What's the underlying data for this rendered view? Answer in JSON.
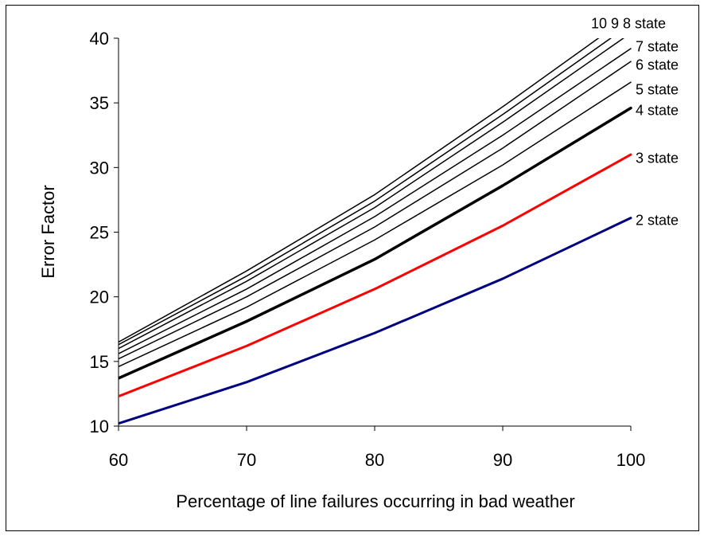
{
  "chart_data": {
    "type": "line",
    "title": "",
    "xlabel": "Percentage of line failures occurring in bad weather",
    "ylabel": "Error Factor",
    "xlim": [
      60,
      100
    ],
    "ylim": [
      10,
      40
    ],
    "xticks": [
      60,
      70,
      80,
      90,
      100
    ],
    "yticks": [
      10,
      15,
      20,
      25,
      30,
      35,
      40
    ],
    "grid": false,
    "legend": "none",
    "x": [
      60,
      70,
      80,
      90,
      100
    ],
    "series": [
      {
        "name": "2 state",
        "label": "2 state",
        "color": "#000080",
        "width": 3,
        "values": [
          10.2,
          13.4,
          17.2,
          21.4,
          26.1
        ]
      },
      {
        "name": "3 state",
        "label": "3 state",
        "color": "#ff0000",
        "width": 3,
        "values": [
          12.3,
          16.2,
          20.6,
          25.5,
          31.0
        ]
      },
      {
        "name": "4 state",
        "label": "4 state",
        "color": "#000000",
        "width": 3.5,
        "values": [
          13.7,
          18.1,
          22.9,
          28.6,
          34.6
        ]
      },
      {
        "name": "5 state",
        "label": "5 state",
        "color": "#000000",
        "width": 1.5,
        "values": [
          14.6,
          19.2,
          24.4,
          30.2,
          36.6
        ]
      },
      {
        "name": "6 state",
        "label": "6 state",
        "color": "#000000",
        "width": 1.5,
        "values": [
          15.2,
          20.0,
          25.4,
          31.5,
          38.2
        ]
      },
      {
        "name": "7 state",
        "label": "7 state",
        "color": "#000000",
        "width": 1.5,
        "values": [
          15.6,
          20.6,
          26.2,
          32.5,
          39.2
        ]
      },
      {
        "name": "8 state",
        "label": "",
        "color": "#000000",
        "width": 1.5,
        "values": [
          16.0,
          21.2,
          26.9,
          33.5,
          40.4
        ]
      },
      {
        "name": "9 state",
        "label": "",
        "color": "#000000",
        "width": 1.5,
        "values": [
          16.3,
          21.6,
          27.4,
          34.1,
          41.1
        ]
      },
      {
        "name": "10 state",
        "label": "",
        "color": "#000000",
        "width": 1.5,
        "values": [
          16.5,
          22.0,
          27.9,
          34.7,
          41.8
        ]
      }
    ],
    "annotations": [
      {
        "text": "10 9 8 state",
        "y": 41.2
      },
      {
        "text": "7 state",
        "y": 39.4
      },
      {
        "text": "6 state",
        "y": 38.0
      },
      {
        "text": "5 state",
        "y": 36.1
      },
      {
        "text": "4 state",
        "y": 34.5
      },
      {
        "text": "3 state",
        "y": 30.8
      },
      {
        "text": "2 state",
        "y": 26.0
      }
    ]
  }
}
